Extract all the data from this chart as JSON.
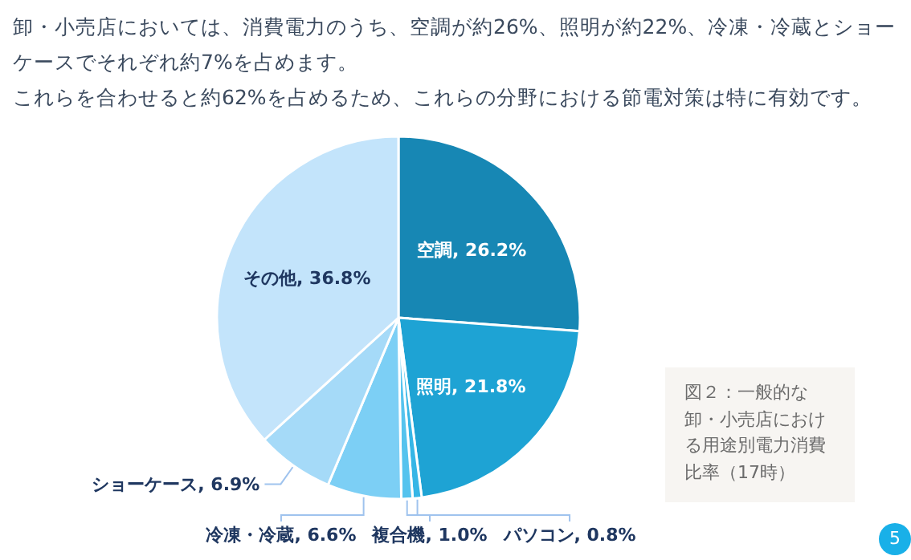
{
  "chart_data": {
    "type": "pie",
    "title": "卸・小売店においては、消費電力のうち、空調が約26%、照明が約22%、冷凍・冷蔵とショーケースでそれぞれ約7%を占めます。",
    "subtitle": "これらを合わせると約62%を占めるため、これらの分野における節電対策は特に有効です。",
    "categories": [
      "空調",
      "照明",
      "パソコン",
      "複合機",
      "冷凍・冷蔵",
      "ショーケース",
      "その他"
    ],
    "values": [
      26.2,
      21.8,
      0.8,
      1.0,
      6.6,
      6.9,
      36.8
    ],
    "value_labels": [
      ", 26.2%",
      ", 21.8%",
      ", 0.8%",
      ", 1.0%",
      ", 6.6%",
      ", 6.9%",
      ", 36.8%"
    ],
    "colors": [
      "#1787b4",
      "#1ea3d4",
      "#36b6e6",
      "#55c3ee",
      "#7ccff5",
      "#a5daf8",
      "#c3e4fb"
    ],
    "annotations": [
      "図２：一般的な卸・小売店における用途別電力消費比率（17時）",
      "5"
    ]
  }
}
